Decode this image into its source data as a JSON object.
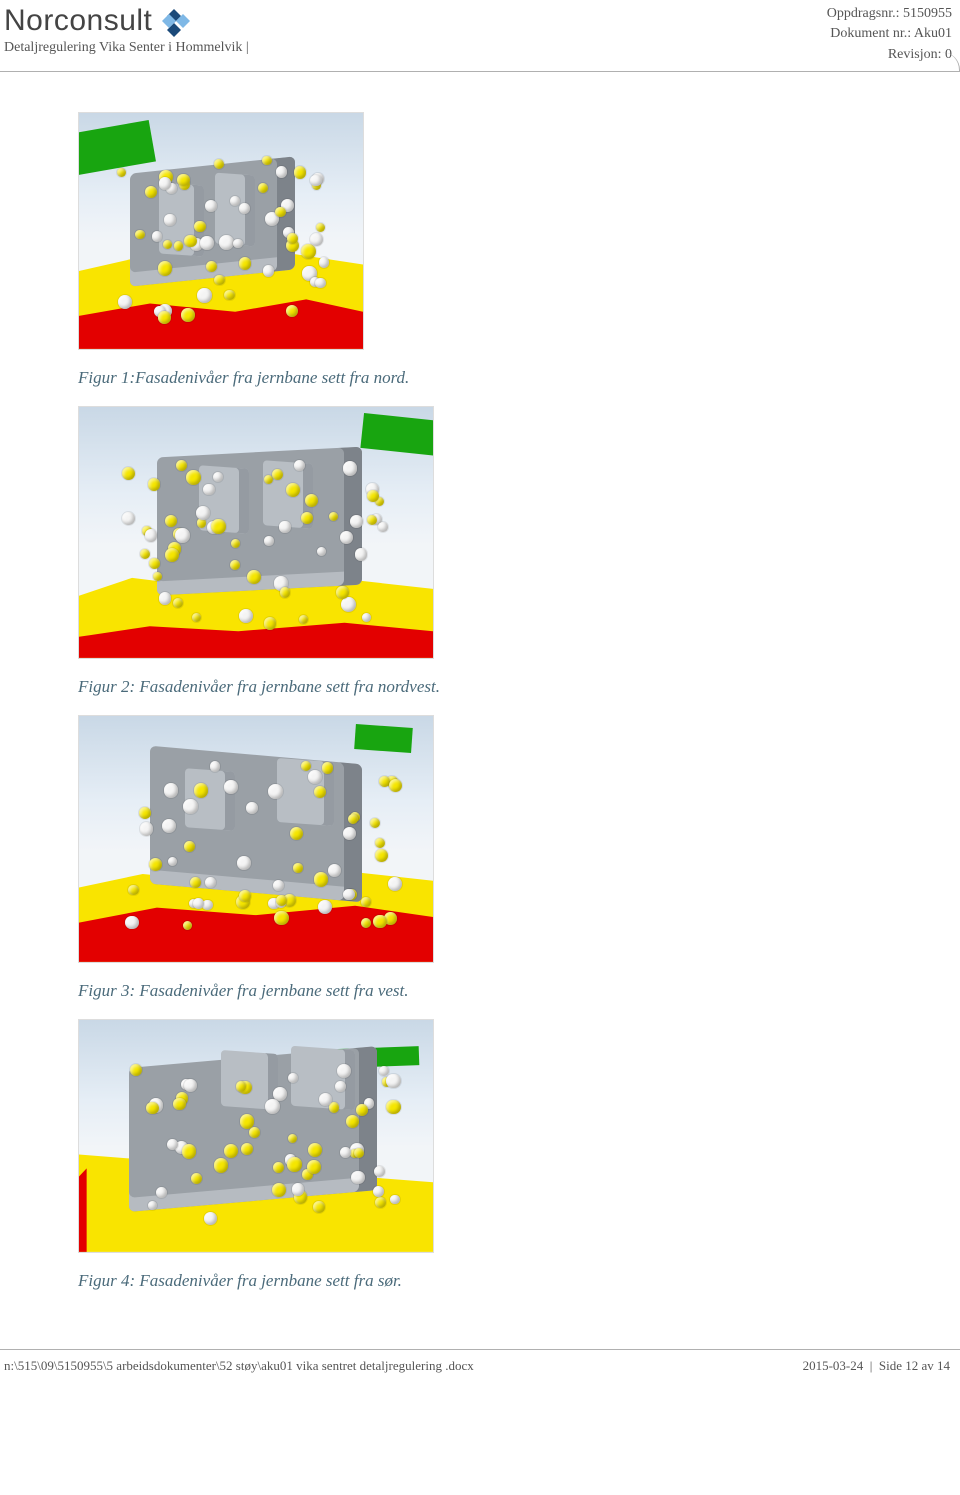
{
  "header": {
    "company": "Norconsult",
    "subtitle": "Detaljregulering Vika Senter i Hommelvik  |",
    "meta": {
      "oppdragsnr_label": "Oppdragsnr.:",
      "oppdragsnr": "5150955",
      "dokument_label": "Dokument nr.:",
      "dokument": "Aku01",
      "revisjon_label": "Revisjon:",
      "revisjon": "0"
    },
    "logo_colors": {
      "dark": "#1b4a7a",
      "light": "#7fb8e6"
    }
  },
  "figures": [
    {
      "caption": "Figur 1:Fasadenivåer fra jernbane sett fra nord.",
      "size_class": "fig1",
      "palette": {
        "sky": "#c9d8e6",
        "yellow": "#f9e400",
        "red": "#e30000",
        "green": "#18a510",
        "building": "#9aa0a6",
        "dot_yellow": "#f5e600",
        "dot_white": "#f4f4f4"
      }
    },
    {
      "caption": "Figur 2: Fasadenivåer fra jernbane sett fra nordvest.",
      "size_class": "fig2",
      "palette": {
        "sky": "#c9d8e6",
        "yellow": "#f9e400",
        "red": "#e30000",
        "green": "#18a510",
        "building": "#9aa0a6",
        "dot_yellow": "#f5e600",
        "dot_white": "#f4f4f4"
      }
    },
    {
      "caption": "Figur 3: Fasadenivåer fra jernbane sett fra vest.",
      "size_class": "fig3",
      "palette": {
        "sky": "#c9d8e6",
        "yellow": "#f9e400",
        "red": "#e30000",
        "green": "#18a510",
        "building": "#9aa0a6",
        "dot_yellow": "#f5e600",
        "dot_white": "#f4f4f4"
      }
    },
    {
      "caption": "Figur 4: Fasadenivåer fra jernbane sett fra sør.",
      "size_class": "fig4",
      "palette": {
        "sky": "#c9d8e6",
        "yellow": "#f9e400",
        "red": "#e30000",
        "green": "#18a510",
        "building": "#9aa0a6",
        "dot_yellow": "#f5e600",
        "dot_white": "#f4f4f4"
      }
    }
  ],
  "footer": {
    "path": "n:\\515\\09\\5150955\\5 arbeidsdokumenter\\52 støy\\aku01 vika sentret detaljregulering .docx",
    "date": "2015-03-24",
    "page_label": "Side 12 av 14"
  }
}
